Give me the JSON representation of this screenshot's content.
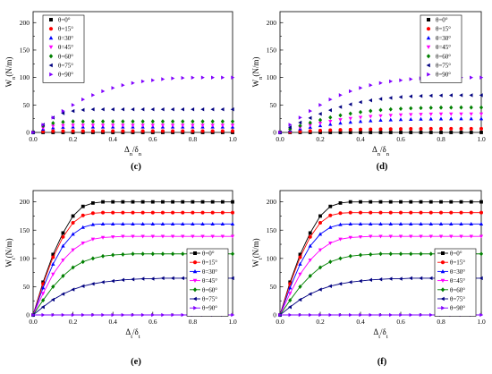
{
  "colors": {
    "theta_0": "#000000",
    "theta_15": "#ff0000",
    "theta_30": "#0000ff",
    "theta_45": "#ff00ff",
    "theta_60": "#008000",
    "theta_75": "#000080",
    "theta_90": "#8000ff"
  },
  "chart_data": [
    {
      "panel": "(c)",
      "type": "scatter",
      "xlabel": "Δn/δn",
      "ylabel": "Wn(N/m)",
      "xlim": [
        0,
        1.0
      ],
      "ylim": [
        0,
        220
      ],
      "xticks": [
        "0.0",
        "0.2",
        "0.4",
        "0.6",
        "0.8",
        "1.0"
      ],
      "yticks": [
        "0",
        "50",
        "100",
        "150",
        "200"
      ],
      "legend_position": "top-left",
      "x": [
        0,
        0.05,
        0.1,
        0.15,
        0.2,
        0.25,
        0.3,
        0.35,
        0.4,
        0.45,
        0.5,
        0.55,
        0.6,
        0.65,
        0.7,
        0.75,
        0.8,
        0.85,
        0.9,
        0.95,
        1.0
      ],
      "series": [
        {
          "name": "θ=0°",
          "marker": "square",
          "color": "#000000",
          "values": [
            0,
            0,
            0,
            0,
            0,
            0,
            0,
            0,
            0,
            0,
            0,
            0,
            0,
            0,
            0,
            0,
            0,
            0,
            0,
            0,
            0
          ]
        },
        {
          "name": "θ=15°",
          "marker": "circle",
          "color": "#ff0000",
          "values": [
            0,
            1.6,
            2.2,
            2.4,
            2.5,
            2.5,
            2.5,
            2.5,
            2.5,
            2.5,
            2.5,
            2.5,
            2.5,
            2.5,
            2.5,
            2.5,
            2.5,
            2.5,
            2.5,
            2.5,
            2.5
          ]
        },
        {
          "name": "θ=30°",
          "marker": "triangle-up",
          "color": "#0000ff",
          "values": [
            0,
            6,
            8.5,
            9.5,
            10,
            10,
            10,
            10,
            10,
            10,
            10,
            10,
            10,
            10,
            10,
            10,
            10,
            10,
            10,
            10,
            10
          ]
        },
        {
          "name": "θ=45°",
          "marker": "triangle-down",
          "color": "#ff00ff",
          "values": [
            0,
            8,
            11.5,
            12.5,
            13,
            13,
            13,
            13,
            13,
            13,
            13,
            13,
            13,
            13,
            13,
            13,
            13,
            13,
            13,
            13,
            13
          ]
        },
        {
          "name": "θ=60°",
          "marker": "diamond",
          "color": "#008000",
          "values": [
            0,
            12,
            17,
            19,
            20,
            20,
            20,
            20,
            20,
            20,
            20,
            20,
            20,
            20,
            20,
            20,
            20,
            20,
            20,
            20,
            20
          ]
        },
        {
          "name": "θ=75°",
          "marker": "triangle-left",
          "color": "#000080",
          "values": [
            0,
            14,
            27,
            35,
            39,
            41,
            42,
            42,
            42,
            42,
            42,
            42,
            42,
            42,
            42,
            42,
            42,
            42,
            42,
            42,
            42
          ]
        },
        {
          "name": "θ=90°",
          "marker": "triangle-right",
          "color": "#8000ff",
          "values": [
            0,
            14,
            27,
            39,
            50,
            60,
            68,
            75,
            81,
            86,
            90,
            93,
            95,
            97,
            98.5,
            99.3,
            99.8,
            100,
            100,
            100,
            100
          ]
        }
      ]
    },
    {
      "panel": "(d)",
      "type": "scatter",
      "xlabel": "Δn/δn",
      "ylabel": "Wn(N/m)",
      "xlim": [
        0,
        1.0
      ],
      "ylim": [
        0,
        220
      ],
      "xticks": [
        "0.0",
        "0.2",
        "0.4",
        "0.6",
        "0.8",
        "1.0"
      ],
      "yticks": [
        "0",
        "50",
        "100",
        "150",
        "200"
      ],
      "legend_position": "top-right",
      "x": [
        0,
        0.05,
        0.1,
        0.15,
        0.2,
        0.25,
        0.3,
        0.35,
        0.4,
        0.45,
        0.5,
        0.55,
        0.6,
        0.65,
        0.7,
        0.75,
        0.8,
        0.85,
        0.9,
        0.95,
        1.0
      ],
      "series": [
        {
          "name": "θ=0°",
          "marker": "square",
          "color": "#000000",
          "values": [
            0,
            0,
            0,
            0,
            0,
            0,
            0,
            0,
            0,
            0,
            0,
            0,
            0,
            0,
            0,
            0,
            0,
            0,
            0,
            0,
            0
          ]
        },
        {
          "name": "θ=15°",
          "marker": "circle",
          "color": "#ff0000",
          "values": [
            0,
            0.9,
            1.8,
            2.6,
            3.4,
            4.1,
            4.6,
            5.1,
            5.5,
            5.8,
            6.0,
            6.2,
            6.4,
            6.5,
            6.6,
            6.7,
            6.7,
            6.7,
            6.7,
            6.7,
            6.7
          ]
        },
        {
          "name": "θ=30°",
          "marker": "triangle-up",
          "color": "#0000ff",
          "values": [
            0,
            3.4,
            6.6,
            9.6,
            12.4,
            14.9,
            17,
            18.7,
            20.2,
            21.4,
            22.3,
            23,
            23.6,
            24,
            24.4,
            24.6,
            24.8,
            25,
            25,
            25,
            25
          ]
        },
        {
          "name": "θ=45°",
          "marker": "triangle-down",
          "color": "#ff00ff",
          "values": [
            0,
            4.6,
            8.9,
            13,
            16.7,
            20.1,
            23,
            25.3,
            27.3,
            28.9,
            30.1,
            31.1,
            31.9,
            32.5,
            32.9,
            33.2,
            33.4,
            33.5,
            33.5,
            33.5,
            33.5
          ]
        },
        {
          "name": "θ=60°",
          "marker": "diamond",
          "color": "#008000",
          "values": [
            0,
            6.2,
            12.1,
            17.6,
            22.6,
            27.2,
            31.1,
            34.3,
            37,
            39.1,
            40.8,
            42.1,
            43.1,
            43.9,
            44.5,
            44.9,
            45.2,
            45.3,
            45.4,
            45.4,
            45.4
          ]
        },
        {
          "name": "θ=75°",
          "marker": "triangle-left",
          "color": "#000080",
          "values": [
            0,
            9.3,
            18,
            26.3,
            33.8,
            40.5,
            46.4,
            51.2,
            55.2,
            58.4,
            61,
            62.9,
            64.4,
            65.6,
            66.4,
            67,
            67.4,
            67.7,
            67.8,
            67.8,
            67.8
          ]
        },
        {
          "name": "θ=90°",
          "marker": "triangle-right",
          "color": "#8000ff",
          "values": [
            0,
            14,
            27,
            39,
            50,
            60,
            68,
            75,
            81,
            86,
            90,
            93,
            95,
            97,
            98.5,
            99.3,
            99.8,
            100,
            100,
            100,
            100
          ]
        }
      ]
    },
    {
      "panel": "(e)",
      "type": "line",
      "xlabel": "Δt/δt",
      "ylabel": "Wt(N/m)",
      "xlim": [
        0,
        1.0
      ],
      "ylim": [
        0,
        220
      ],
      "xticks": [
        "0.0",
        "0.2",
        "0.4",
        "0.6",
        "0.8",
        "1.0"
      ],
      "yticks": [
        "0",
        "50",
        "100",
        "150",
        "200"
      ],
      "legend_position": "bottom-right",
      "x": [
        0,
        0.05,
        0.1,
        0.15,
        0.2,
        0.25,
        0.3,
        0.35,
        0.4,
        0.45,
        0.5,
        0.55,
        0.6,
        0.65,
        0.7,
        0.75,
        0.8,
        0.85,
        0.9,
        0.95,
        1.0
      ],
      "series": [
        {
          "name": "θ=0°",
          "marker": "square",
          "color": "#000000",
          "values": [
            0,
            58,
            107,
            145,
            175,
            192,
            198,
            200,
            200,
            200,
            200,
            200,
            200,
            200,
            200,
            200,
            200,
            200,
            200,
            200,
            200
          ]
        },
        {
          "name": "θ=15°",
          "marker": "circle",
          "color": "#ff0000",
          "values": [
            0,
            55,
            102,
            138,
            163,
            176,
            180,
            181,
            181,
            181,
            181,
            181,
            181,
            181,
            181,
            181,
            181,
            181,
            181,
            181,
            181
          ]
        },
        {
          "name": "θ=30°",
          "marker": "triangle-up",
          "color": "#0000ff",
          "values": [
            0,
            48,
            90,
            122,
            143,
            155,
            160,
            161,
            161,
            161,
            161,
            161,
            161,
            161,
            161,
            161,
            161,
            161,
            161,
            161,
            161
          ]
        },
        {
          "name": "θ=45°",
          "marker": "triangle-down",
          "color": "#ff00ff",
          "values": [
            0,
            38,
            72,
            97,
            115,
            127,
            134,
            137,
            138,
            139,
            139,
            139,
            139,
            139,
            139,
            139,
            139,
            139,
            139,
            139,
            139
          ]
        },
        {
          "name": "θ=60°",
          "marker": "diamond",
          "color": "#008000",
          "values": [
            0,
            26,
            50,
            69,
            84,
            94,
            100,
            104,
            106,
            107,
            108,
            108,
            108,
            108,
            108,
            108,
            108,
            108,
            108,
            108,
            108
          ]
        },
        {
          "name": "θ=75°",
          "marker": "triangle-left",
          "color": "#000080",
          "values": [
            0,
            14,
            27,
            37,
            45,
            51,
            55,
            58,
            60,
            62,
            63,
            64,
            64,
            65,
            65,
            65,
            65,
            65,
            65,
            65,
            65
          ]
        },
        {
          "name": "θ=90°",
          "marker": "triangle-right",
          "color": "#8000ff",
          "values": [
            0,
            0,
            0,
            0,
            0,
            0,
            0,
            0,
            0,
            0,
            0,
            0,
            0,
            0,
            0,
            0,
            0,
            0,
            0,
            0,
            0
          ]
        }
      ]
    },
    {
      "panel": "(f)",
      "type": "line",
      "xlabel": "Δt/δt",
      "ylabel": "Wt(N/m)",
      "xlim": [
        0,
        1.0
      ],
      "ylim": [
        0,
        220
      ],
      "xticks": [
        "0.0",
        "0.2",
        "0.4",
        "0.6",
        "0.8",
        "1.0"
      ],
      "yticks": [
        "0",
        "50",
        "100",
        "150",
        "200"
      ],
      "legend_position": "bottom-right",
      "x": [
        0,
        0.05,
        0.1,
        0.15,
        0.2,
        0.25,
        0.3,
        0.35,
        0.4,
        0.45,
        0.5,
        0.55,
        0.6,
        0.65,
        0.7,
        0.75,
        0.8,
        0.85,
        0.9,
        0.95,
        1.0
      ],
      "series": [
        {
          "name": "θ=0°",
          "marker": "square",
          "color": "#000000",
          "values": [
            0,
            58,
            107,
            145,
            175,
            192,
            198,
            200,
            200,
            200,
            200,
            200,
            200,
            200,
            200,
            200,
            200,
            200,
            200,
            200,
            200
          ]
        },
        {
          "name": "θ=15°",
          "marker": "circle",
          "color": "#ff0000",
          "values": [
            0,
            55,
            102,
            138,
            163,
            176,
            180,
            181,
            181,
            181,
            181,
            181,
            181,
            181,
            181,
            181,
            181,
            181,
            181,
            181,
            181
          ]
        },
        {
          "name": "θ=30°",
          "marker": "triangle-up",
          "color": "#0000ff",
          "values": [
            0,
            48,
            90,
            122,
            143,
            155,
            160,
            161,
            161,
            161,
            161,
            161,
            161,
            161,
            161,
            161,
            161,
            161,
            161,
            161,
            161
          ]
        },
        {
          "name": "θ=45°",
          "marker": "triangle-down",
          "color": "#ff00ff",
          "values": [
            0,
            38,
            72,
            97,
            115,
            127,
            134,
            137,
            138,
            139,
            139,
            139,
            139,
            139,
            139,
            139,
            139,
            139,
            139,
            139,
            139
          ]
        },
        {
          "name": "θ=60°",
          "marker": "diamond",
          "color": "#008000",
          "values": [
            0,
            26,
            50,
            69,
            84,
            94,
            100,
            104,
            106,
            107,
            108,
            108,
            108,
            108,
            108,
            108,
            108,
            108,
            108,
            108,
            108
          ]
        },
        {
          "name": "θ=75°",
          "marker": "triangle-left",
          "color": "#000080",
          "values": [
            0,
            14,
            27,
            37,
            45,
            51,
            55,
            58,
            60,
            62,
            63,
            64,
            64,
            65,
            65,
            65,
            65,
            65,
            65,
            65,
            65
          ]
        },
        {
          "name": "θ=90°",
          "marker": "triangle-right",
          "color": "#8000ff",
          "values": [
            0,
            0,
            0,
            0,
            0,
            0,
            0,
            0,
            0,
            0,
            0,
            0,
            0,
            0,
            0,
            0,
            0,
            0,
            0,
            0,
            0
          ]
        }
      ]
    }
  ]
}
